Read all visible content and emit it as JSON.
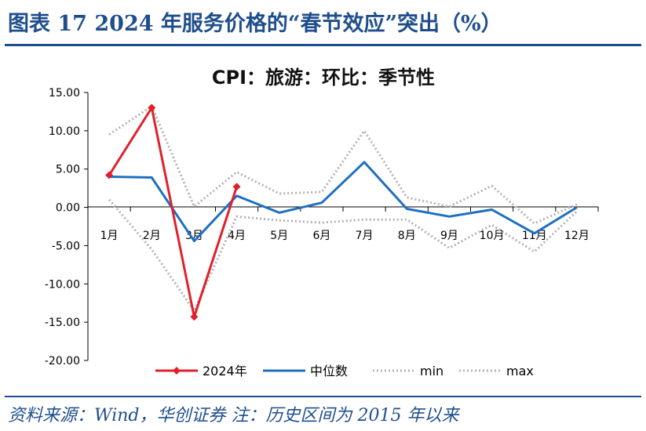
{
  "header": {
    "title": "图表 17   2024 年服务价格的“春节效应”突出（%）"
  },
  "footer": {
    "source": "资料来源：Wind，华创证券  注：历史区间为 2015 年以来"
  },
  "chart_data": {
    "type": "line",
    "title": "CPI：旅游：环比：季节性",
    "categories": [
      "1月",
      "2月",
      "3月",
      "4月",
      "5月",
      "6月",
      "7月",
      "8月",
      "9月",
      "10月",
      "11月",
      "12月"
    ],
    "ylim": [
      -20,
      15
    ],
    "yticks": [
      "15.00",
      "10.00",
      "5.00",
      "0.00",
      "-5.00",
      "-10.00",
      "-15.00",
      "-20.00"
    ],
    "legend_position": "bottom",
    "series": [
      {
        "name": "2024年",
        "color": "#e0202a",
        "style": "solid-marker",
        "values": [
          4.2,
          13.0,
          -14.3,
          2.7,
          null,
          null,
          null,
          null,
          null,
          null,
          null,
          null
        ]
      },
      {
        "name": "中位数",
        "color": "#1f6fc0",
        "style": "solid",
        "values": [
          4.0,
          3.9,
          -4.4,
          1.5,
          -0.7,
          0.6,
          5.9,
          -0.2,
          -1.2,
          -0.3,
          -3.4,
          0.0
        ]
      },
      {
        "name": "min",
        "color": "#b4b4b4",
        "style": "dotted",
        "values": [
          1.0,
          -5.5,
          -13.5,
          -1.2,
          -1.7,
          -2.0,
          -1.6,
          -1.6,
          -5.3,
          -2.3,
          -5.8,
          -0.5
        ]
      },
      {
        "name": "max",
        "color": "#b4b4b4",
        "style": "dotted",
        "values": [
          9.5,
          13.2,
          0.1,
          4.6,
          1.8,
          2.0,
          10.0,
          1.3,
          0.1,
          2.8,
          -2.1,
          0.4
        ]
      }
    ]
  }
}
